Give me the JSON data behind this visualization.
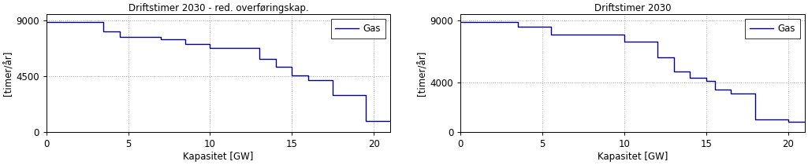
{
  "left": {
    "title": "Driftstimer 2030 - red. overføringskap.",
    "xlabel": "Kapasitet [GW]",
    "ylabel": "[timer/år]",
    "xlim": [
      0,
      21
    ],
    "ylim": [
      0,
      9500
    ],
    "xticks": [
      0,
      5,
      10,
      15,
      20
    ],
    "yticks": [
      0,
      4500,
      9000
    ],
    "legend_label": "Gas",
    "line_color": "#00008B",
    "step_x": [
      0,
      3.5,
      3.5,
      4.5,
      4.5,
      7.0,
      7.0,
      8.5,
      8.5,
      10.0,
      10.0,
      13.0,
      13.0,
      14.0,
      14.0,
      15.0,
      15.0,
      16.0,
      16.0,
      17.5,
      17.5,
      19.5,
      19.5,
      21.0
    ],
    "step_y": [
      8900,
      8900,
      8100,
      8100,
      7700,
      7700,
      7500,
      7500,
      7100,
      7100,
      6800,
      6800,
      5900,
      5900,
      5300,
      5300,
      4600,
      4600,
      4200,
      4200,
      3000,
      3000,
      900,
      900
    ]
  },
  "right": {
    "title": "Driftstimer 2030",
    "xlabel": "Kapasitet [GW]",
    "ylabel": "[timer/år]",
    "xlim": [
      0,
      21
    ],
    "ylim": [
      0,
      9500
    ],
    "xticks": [
      0,
      5,
      10,
      15,
      20
    ],
    "yticks": [
      0,
      4000,
      9000
    ],
    "legend_label": "Gas",
    "line_color": "#00008B",
    "step_x": [
      0,
      3.5,
      3.5,
      5.5,
      5.5,
      10.0,
      10.0,
      12.0,
      12.0,
      13.0,
      13.0,
      14.0,
      14.0,
      15.0,
      15.0,
      15.5,
      15.5,
      16.5,
      16.5,
      18.0,
      18.0,
      20.0,
      20.0,
      21.0
    ],
    "step_y": [
      8900,
      8900,
      8500,
      8500,
      7900,
      7900,
      7300,
      7300,
      6000,
      6000,
      4900,
      4900,
      4400,
      4400,
      4100,
      4100,
      3400,
      3400,
      3100,
      3100,
      1000,
      1000,
      800,
      800
    ]
  },
  "bg_color": "#ffffff",
  "grid_color": "#aaaaaa",
  "font_size": 8.5,
  "fig_width": 10.25,
  "fig_height": 2.1,
  "dpi": 100
}
